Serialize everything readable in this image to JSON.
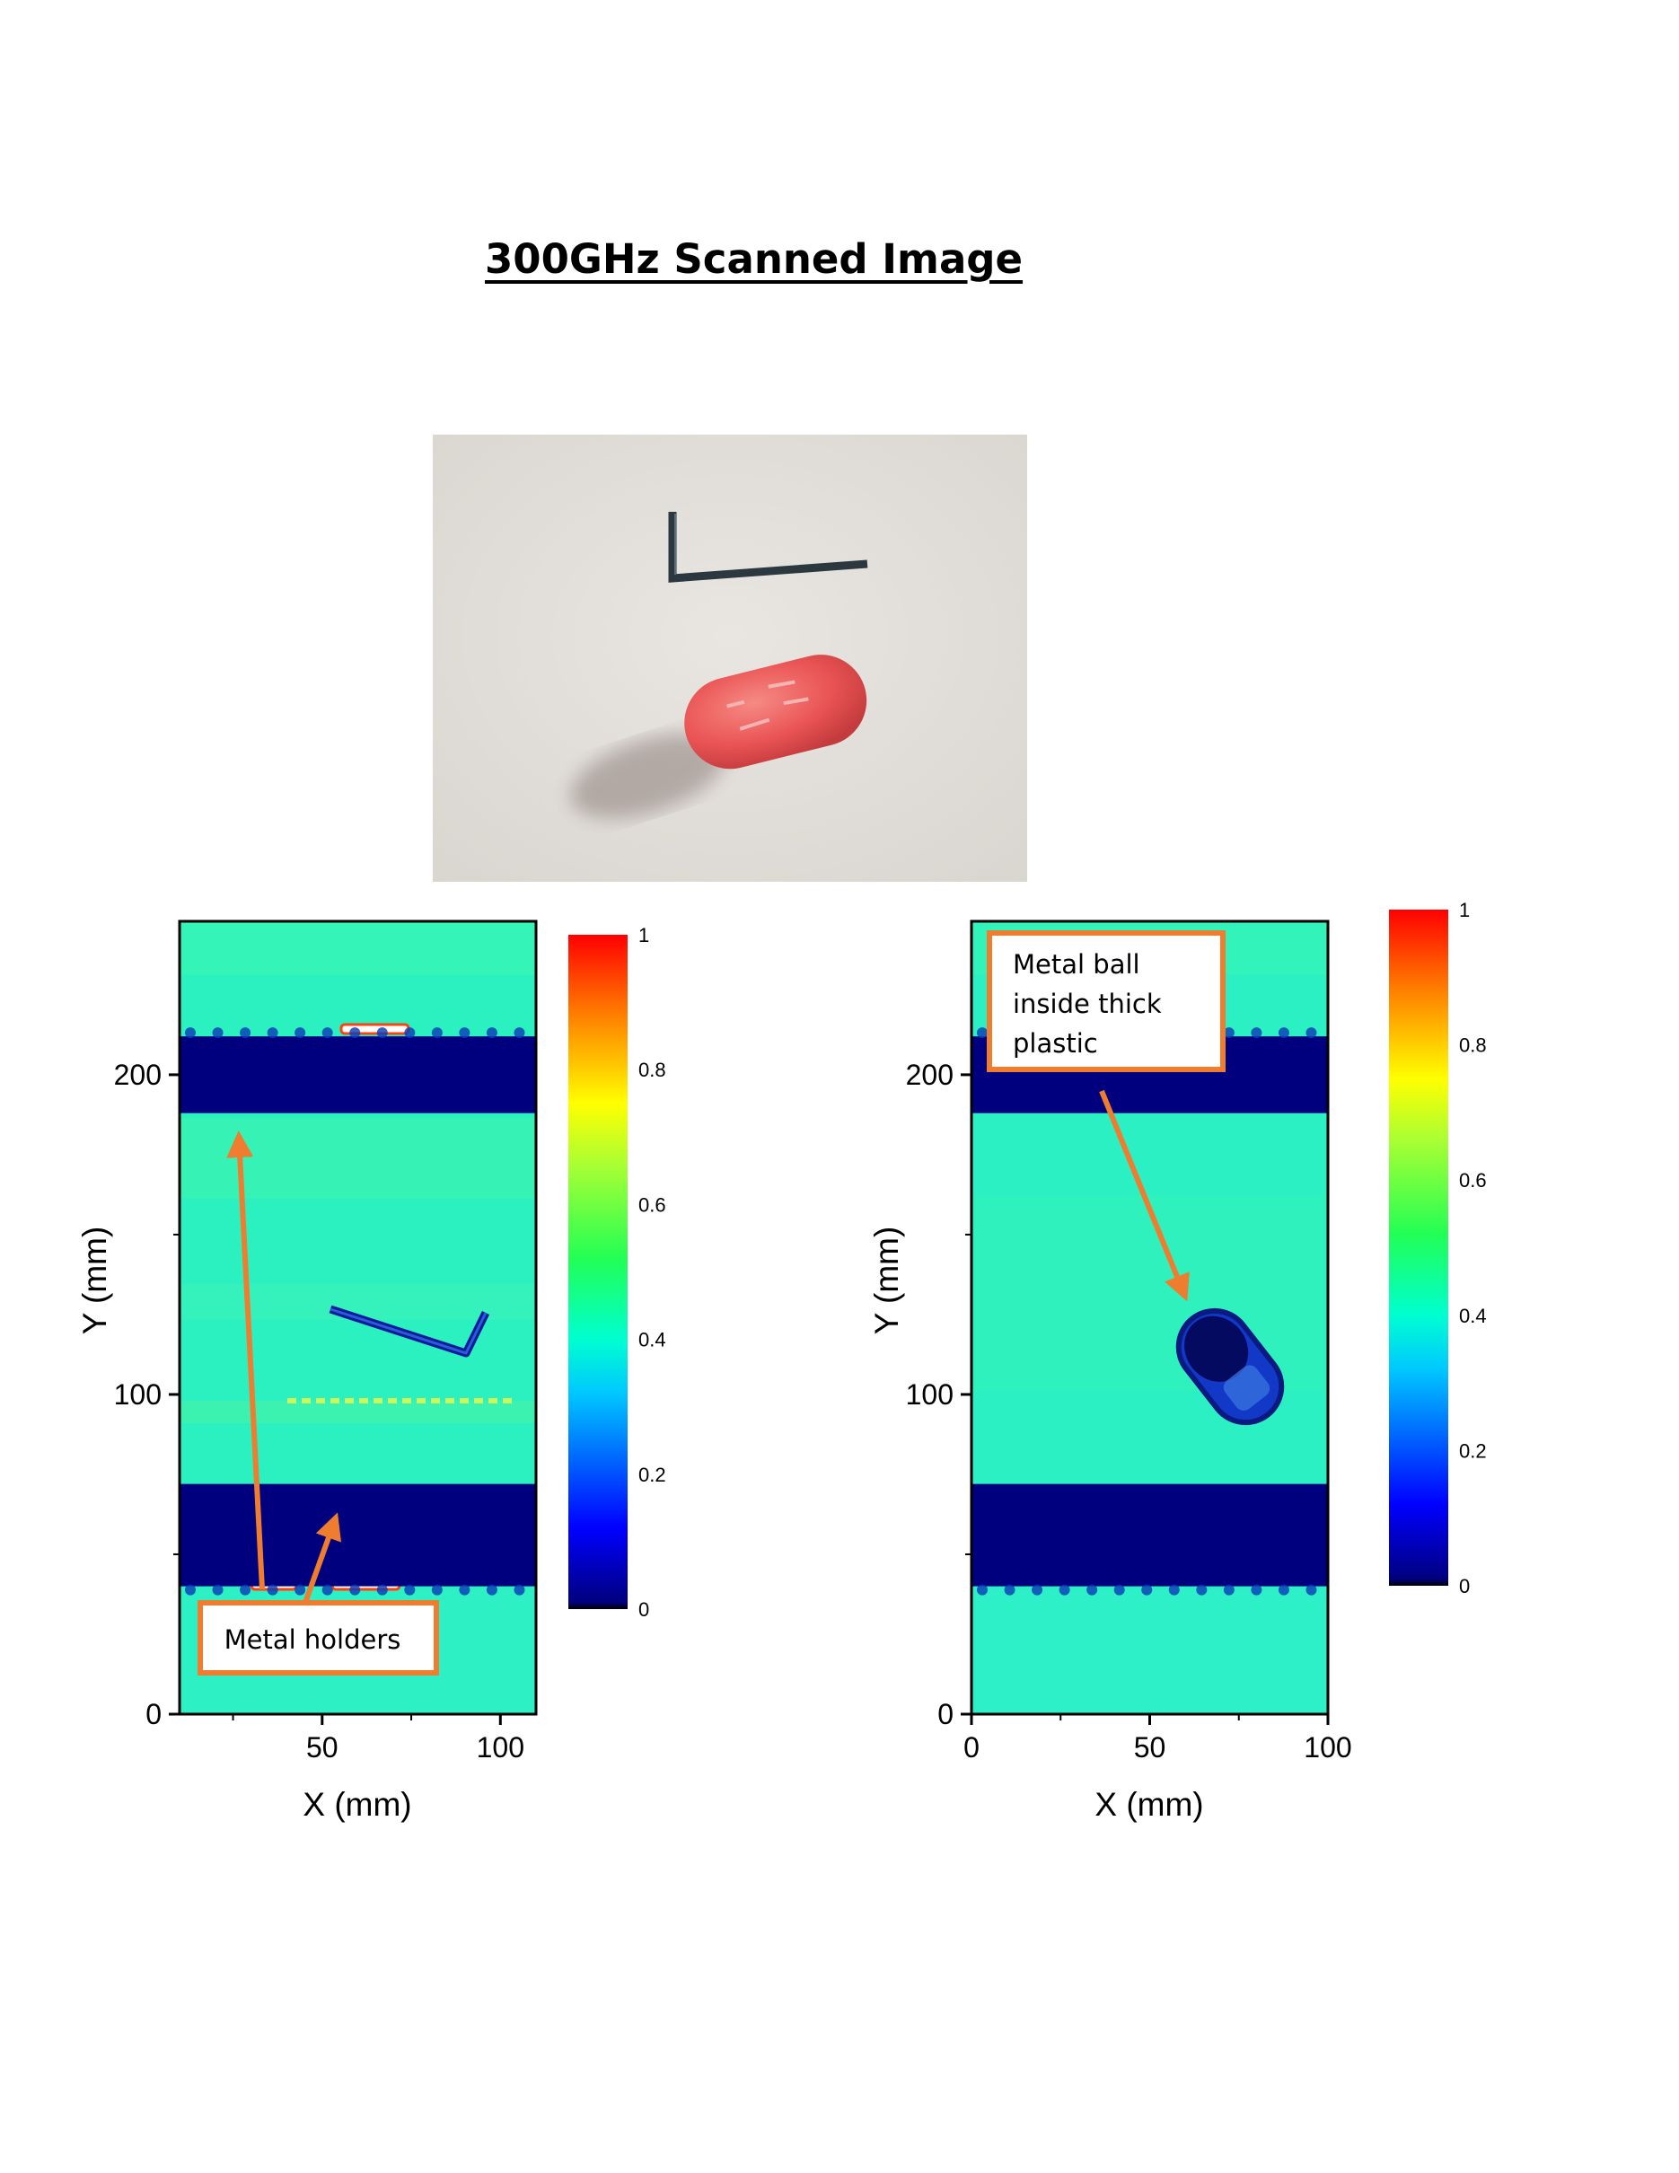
{
  "page": {
    "title": "300GHz Scanned Image"
  },
  "photo": {
    "description_icon": "photo-allen-key-and-red-capsule",
    "colors": {
      "background": "#e4e1dc",
      "capsule": "#ee5a5a",
      "key": "#2e3a42"
    }
  },
  "colormap": {
    "name": "rainbow",
    "stops": [
      "#000000",
      "#00007f",
      "#0000ff",
      "#00ffff",
      "#33ff66",
      "#ffff00",
      "#ff8000",
      "#ff0000"
    ]
  },
  "chart_data": [
    {
      "type": "heatmap",
      "xlabel": "X (mm)",
      "ylabel": "Y (mm)",
      "xlim": [
        10,
        110
      ],
      "ylim": [
        0,
        248
      ],
      "xticks": [
        50,
        100
      ],
      "yticks": [
        0,
        100,
        200
      ],
      "colorbar": {
        "min": 0,
        "max": 1,
        "ticks": [
          "0",
          "0.2",
          "0.4",
          "0.6",
          "0.8",
          "1"
        ]
      },
      "dark_bands_y": [
        [
          188,
          212
        ],
        [
          40,
          72
        ]
      ],
      "background_value": 0.4,
      "object": "allen-key",
      "annotation": {
        "text": "Metal holders"
      }
    },
    {
      "type": "heatmap",
      "xlabel": "X (mm)",
      "ylabel": "Y (mm)",
      "xlim": [
        0,
        100
      ],
      "ylim": [
        0,
        248
      ],
      "xticks": [
        0,
        50,
        100
      ],
      "yticks": [
        0,
        100,
        200
      ],
      "colorbar": {
        "min": 0,
        "max": 1,
        "ticks": [
          "0",
          "0.2",
          "0.4",
          "0.6",
          "0.8",
          "1"
        ]
      },
      "dark_bands_y": [
        [
          188,
          212
        ],
        [
          40,
          72
        ]
      ],
      "background_value": 0.38,
      "object": "capsule",
      "annotation": {
        "text": "Metal ball\ninside thick\nplastic"
      }
    }
  ]
}
